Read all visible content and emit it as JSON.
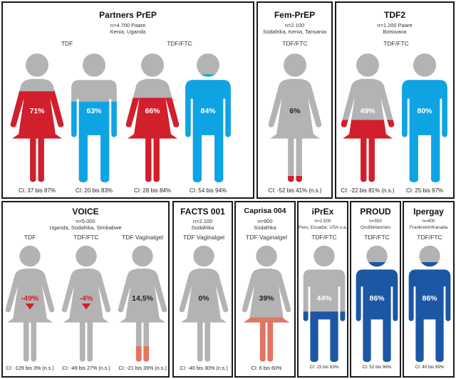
{
  "chart_data": {
    "type": "pictogram",
    "colors": {
      "gray": "#b3b3b3",
      "red": "#d21f2c",
      "blue": "#0ea4e4",
      "salmon": "#e37565",
      "navy": "#1b57a4",
      "black": "#1a1a1a"
    },
    "panels": [
      {
        "title": "Partners PrEP",
        "subtitle": [
          "n=4.700 Paare",
          "Kenia, Uganda"
        ],
        "groups": [
          "TDF",
          "TDF/FTC"
        ],
        "figures": [
          {
            "shape": "woman",
            "value": 71,
            "label": "71%",
            "fill": "red",
            "ci": "CI: 37 bis 87%"
          },
          {
            "shape": "man",
            "value": 63,
            "label": "63%",
            "fill": "blue",
            "ci": "CI: 20 bis 83%"
          },
          {
            "shape": "woman",
            "value": 66,
            "label": "66%",
            "fill": "red",
            "ci": "CI: 28 bis 84%"
          },
          {
            "shape": "man",
            "value": 84,
            "label": "84%",
            "fill": "blue",
            "ci": "CI: 54 bis 94%"
          }
        ]
      },
      {
        "title": "Fem-PrEP",
        "subtitle": [
          "n=2.100",
          "Südafrika, Kenia, Tansania"
        ],
        "groups": [
          "TDF/FTC"
        ],
        "figures": [
          {
            "shape": "woman",
            "value": 6,
            "label": "6%",
            "fill": "red",
            "ci": "CI: -52 bis 41% (n.s.)"
          }
        ]
      },
      {
        "title": "TDF2",
        "subtitle": [
          "n=1.200 Paare",
          "Botswana"
        ],
        "groups": [
          "TDF/FTC"
        ],
        "figures": [
          {
            "shape": "woman",
            "value": 49,
            "label": "49%",
            "fill": "red",
            "ci": "CI: -22 bis 81% (n.s.)"
          },
          {
            "shape": "man",
            "value": 80,
            "label": "80%",
            "fill": "blue",
            "ci": "CI: 25 bis 97%"
          }
        ]
      },
      {
        "title": "VOICE",
        "subtitle": [
          "n=5.000",
          "Uganda, Südafrika, Simbabwe"
        ],
        "groups": [
          "TDF",
          "TDF/FTC",
          "TDF Vaginalgel"
        ],
        "figures": [
          {
            "shape": "woman",
            "value": -49,
            "label": "-49%",
            "fill": "red",
            "ci": "CI: -129 bis 3% (n.s.)"
          },
          {
            "shape": "woman",
            "value": -4,
            "label": "-4%",
            "fill": "red",
            "ci": "CI: -49 bis 27% (n.s.)"
          },
          {
            "shape": "woman",
            "value": 14.5,
            "label": "14,5%",
            "fill": "salmon",
            "ci": "CI: -21 bis 39% (n.s.)"
          }
        ]
      },
      {
        "title": "FACTS 001",
        "subtitle": [
          "n=2.100",
          "Südafrika"
        ],
        "groups": [
          "TDF Vaginalgel"
        ],
        "figures": [
          {
            "shape": "woman",
            "value": 0,
            "label": "0%",
            "fill": "salmon",
            "ci": "CI: -40 bis 30% (n.s.)"
          }
        ]
      },
      {
        "title": "Caprisa 004",
        "subtitle": [
          "n=900",
          "Südafrika"
        ],
        "groups": [
          "TDF Vaginalgel"
        ],
        "figures": [
          {
            "shape": "woman",
            "value": 39,
            "label": "39%",
            "fill": "salmon",
            "ci": "CI: 6 bis 60%"
          }
        ]
      },
      {
        "title": "iPrEx",
        "subtitle": [
          "n=2.500",
          "Peru, Ecuador, USA u.a."
        ],
        "groups": [
          "TDF/FTC"
        ],
        "figures": [
          {
            "shape": "man",
            "value": 44,
            "label": "44%",
            "fill": "navy",
            "ci": "CI: 15 bis 63%"
          }
        ]
      },
      {
        "title": "PROUD",
        "subtitle": [
          "n=550",
          "Großbritannien"
        ],
        "groups": [
          "TDF/FTC"
        ],
        "figures": [
          {
            "shape": "man",
            "value": 86,
            "label": "86%",
            "fill": "navy",
            "ci": "CI: 52 bis 96%"
          }
        ]
      },
      {
        "title": "Ipergay",
        "subtitle": [
          "n=400",
          "Frankreich/Kanada"
        ],
        "groups": [
          "TDF/FTC"
        ],
        "figures": [
          {
            "shape": "man",
            "value": 86,
            "label": "86%",
            "fill": "navy",
            "ci": "CI: 40 bis 99%"
          }
        ]
      }
    ]
  }
}
